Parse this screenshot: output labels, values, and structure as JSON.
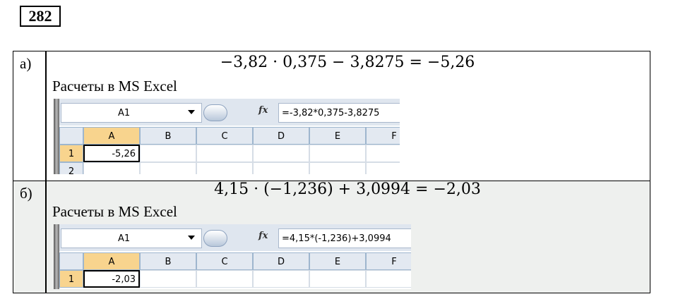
{
  "problem_number": "282",
  "items": [
    {
      "label": "а)",
      "equation": "−3,82 · 0,375 − 3,8275 = −5,26",
      "caption": "Расчеты в MS Excel",
      "excel": {
        "name_box": "A1",
        "fx": "fx",
        "formula": "=-3,82*0,375-3,8275",
        "columns": [
          "A",
          "B",
          "C",
          "D",
          "E",
          "F"
        ],
        "rows": [
          "1",
          "2"
        ],
        "cell_value": "-5,26"
      }
    },
    {
      "label": "б)",
      "equation": "4,15 · (−1,236) + 3,0994 = −2,03",
      "caption": "Расчеты в MS Excel",
      "excel": {
        "name_box": "A1",
        "fx": "fx",
        "formula": "=4,15*(-1,236)+3,0994",
        "columns": [
          "A",
          "B",
          "C",
          "D",
          "E",
          "F"
        ],
        "rows": [
          "1"
        ],
        "cell_value": "-2,03"
      }
    }
  ]
}
